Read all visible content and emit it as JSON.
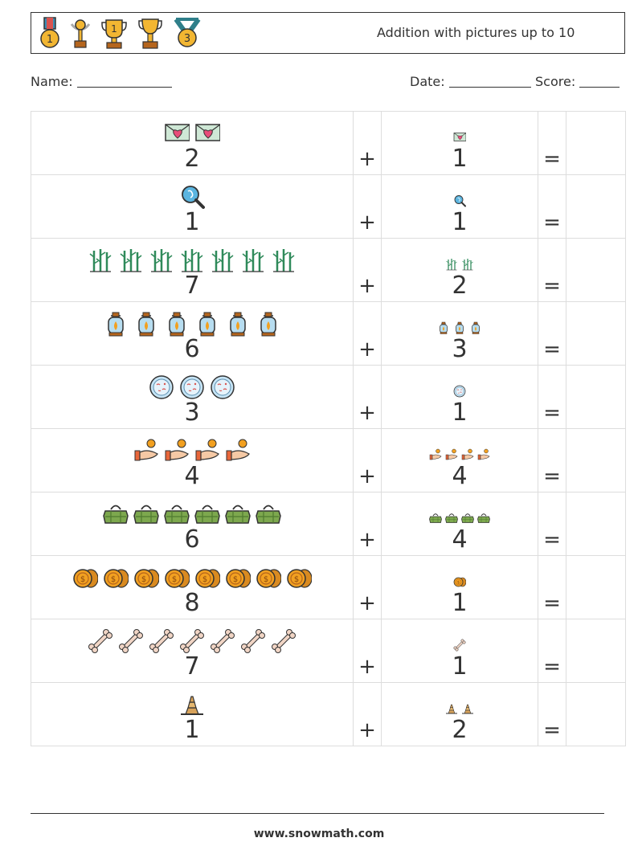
{
  "header": {
    "title": "Addition with pictures up to 10",
    "medals": [
      "medal-1-icon",
      "trophy-small-icon",
      "trophy-1-icon",
      "trophy-cup-icon",
      "medal-3-icon"
    ]
  },
  "fields": {
    "name_label": "Name:",
    "date_label": "Date:",
    "score_label": "Score:"
  },
  "problems": [
    {
      "left": "2",
      "right": "1",
      "icon": "love-letter-icon"
    },
    {
      "left": "1",
      "right": "1",
      "icon": "magnifier-icon"
    },
    {
      "left": "7",
      "right": "2",
      "icon": "bamboo-icon"
    },
    {
      "left": "6",
      "right": "3",
      "icon": "lantern-icon"
    },
    {
      "left": "3",
      "right": "1",
      "icon": "petri-dish-icon"
    },
    {
      "left": "4",
      "right": "4",
      "icon": "hand-coin-icon"
    },
    {
      "left": "6",
      "right": "4",
      "icon": "basket-icon"
    },
    {
      "left": "8",
      "right": "1",
      "icon": "coins-icon"
    },
    {
      "left": "7",
      "right": "1",
      "icon": "bone-icon"
    },
    {
      "left": "1",
      "right": "2",
      "icon": "pyramid-icon"
    }
  ],
  "operators": {
    "plus": "+",
    "equals": "="
  },
  "footer": {
    "website": "www.snowmath.com"
  }
}
